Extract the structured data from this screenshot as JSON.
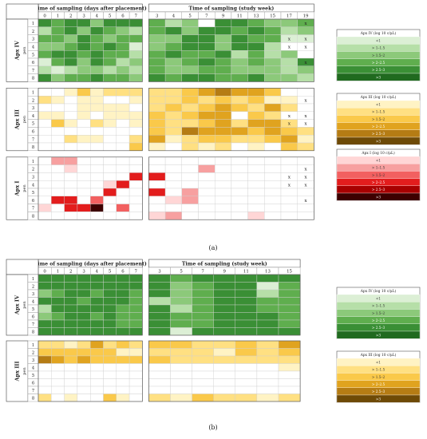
{
  "scale_colors": {
    "green": [
      "#dcefd5",
      "#b6dfa8",
      "#8cc97a",
      "#5fae4e",
      "#3a8f35",
      "#206a1f"
    ],
    "gold": [
      "#fff3c4",
      "#ffe082",
      "#fac94a",
      "#e0a31f",
      "#b57c14",
      "#6e4a06"
    ],
    "red": [
      "#ffd6d6",
      "#f7a0a0",
      "#f26060",
      "#e31d1d",
      "#a80000",
      "#3d0000"
    ],
    "pale_pink": "#fbe3ee",
    "empty": "#ffffff"
  },
  "panels": [
    {
      "caption": "(a)",
      "days_header": "Time of sampling (days after placement)",
      "weeks_header": "Time of sampling (study week)",
      "day_ticks": [
        "0",
        "1",
        "2",
        "3",
        "4",
        "5",
        "6",
        "7"
      ],
      "week_ticks": [
        "3",
        "4",
        "5",
        "7",
        "9",
        "11",
        "13",
        "15",
        "17",
        "19"
      ],
      "pen_label": "pen",
      "pens": [
        "1",
        "2",
        "3",
        "4",
        "5",
        "6",
        "7",
        "8"
      ],
      "groups": [
        {
          "gene": "Apx IV",
          "scale": "green",
          "days": [
            [
              5,
              4,
              5,
              5,
              3,
              5,
              5,
              5
            ],
            [
              2,
              4,
              5,
              3,
              5,
              4,
              3,
              2
            ],
            [
              4,
              4,
              3,
              5,
              4,
              3,
              4,
              4
            ],
            [
              3,
              3,
              4,
              5,
              4,
              5,
              4,
              1
            ],
            [
              4,
              5,
              5,
              4,
              5,
              4,
              4,
              2
            ],
            [
              1,
              4,
              5,
              3,
              5,
              4,
              2,
              3
            ],
            [
              2,
              1,
              2,
              3,
              3,
              2,
              3,
              2
            ],
            [
              5,
              3,
              4,
              4,
              5,
              4,
              4,
              3
            ]
          ],
          "weeks": [
            [
              4,
              2,
              3,
              0,
              5,
              5,
              4,
              3,
              3,
              4
            ],
            [
              4,
              5,
              3,
              5,
              5,
              4,
              5,
              4,
              2,
              3
            ],
            [
              3,
              3,
              5,
              5,
              3,
              5,
              4,
              4,
              1,
              1
            ],
            [
              3,
              4,
              5,
              5,
              3,
              5,
              5,
              2,
              0,
              0
            ],
            [
              4,
              5,
              4,
              4,
              5,
              2,
              4,
              2,
              3,
              0
            ],
            [
              4,
              3,
              4,
              5,
              4,
              3,
              4,
              3,
              2,
              5
            ],
            [
              4,
              3,
              3,
              4,
              4,
              3,
              3,
              3,
              2,
              3
            ],
            [
              5,
              4,
              5,
              5,
              4,
              4,
              5,
              3,
              3,
              2
            ]
          ],
          "x_marks": [
            [
              0,
              9
            ],
            [
              2,
              8
            ],
            [
              2,
              9
            ],
            [
              3,
              8
            ],
            [
              3,
              9
            ],
            [
              5,
              9
            ]
          ]
        },
        {
          "gene": "Apx III",
          "scale": "gold",
          "days": [
            [
              0,
              0,
              1,
              3,
              1,
              2,
              2,
              2
            ],
            [
              2,
              1,
              0,
              1,
              1,
              0,
              0,
              1
            ],
            [
              0,
              0,
              0,
              1,
              1,
              1,
              1,
              0
            ],
            [
              1,
              1,
              0,
              1,
              0,
              1,
              1,
              1
            ],
            [
              0,
              3,
              1,
              0,
              2,
              1,
              0,
              1
            ],
            [
              0,
              0,
              0,
              0,
              0,
              0,
              0,
              0
            ],
            [
              0,
              0,
              2,
              1,
              1,
              0,
              0,
              2
            ],
            [
              0,
              0,
              0,
              0,
              0,
              0,
              0,
              3
            ]
          ],
          "weeks": [
            [
              2,
              2,
              3,
              4,
              5,
              4,
              4,
              3,
              0,
              0
            ],
            [
              2,
              2,
              3,
              2,
              3,
              2,
              3,
              1,
              1,
              0
            ],
            [
              2,
              3,
              2,
              3,
              4,
              3,
              2,
              4,
              2,
              0
            ],
            [
              3,
              2,
              3,
              4,
              4,
              0,
              3,
              2,
              0,
              0
            ],
            [
              3,
              2,
              2,
              3,
              4,
              2,
              4,
              4,
              2,
              0
            ],
            [
              3,
              2,
              5,
              4,
              4,
              4,
              3,
              4,
              3,
              2
            ],
            [
              4,
              1,
              2,
              3,
              3,
              2,
              2,
              3,
              4,
              1
            ],
            [
              1,
              0,
              2,
              1,
              2,
              0,
              1,
              0,
              3,
              2
            ]
          ],
          "x_marks": [
            [
              1,
              9
            ],
            [
              3,
              8
            ],
            [
              3,
              9
            ],
            [
              4,
              8
            ],
            [
              4,
              9
            ]
          ]
        },
        {
          "gene": "Apx I",
          "scale": "red",
          "days": [
            [
              0,
              2,
              2,
              0,
              0,
              0,
              0,
              0
            ],
            [
              0,
              0,
              1,
              0,
              0,
              0,
              0,
              0
            ],
            [
              0,
              0,
              0,
              0,
              0,
              0,
              0,
              4
            ],
            [
              0,
              0,
              0,
              0,
              0,
              1,
              4,
              0
            ],
            [
              0,
              0,
              0,
              0,
              0,
              4,
              0,
              0
            ],
            [
              0,
              4,
              4,
              0,
              3,
              0,
              0,
              0
            ],
            [
              1,
              0,
              4,
              4,
              6,
              0,
              3,
              0
            ],
            [
              0,
              0,
              0,
              0,
              0,
              0,
              0,
              0
            ]
          ],
          "weeks": [
            [
              0,
              0,
              0,
              0,
              0,
              0,
              0,
              0,
              0,
              0
            ],
            [
              0,
              0,
              0,
              2,
              0,
              0,
              0,
              0,
              0,
              0
            ],
            [
              4,
              0,
              0,
              0,
              0,
              0,
              0,
              0,
              0,
              0
            ],
            [
              0,
              0,
              0,
              0,
              0,
              0,
              0,
              0,
              0,
              0
            ],
            [
              4,
              0,
              2,
              0,
              0,
              0,
              0,
              0,
              0,
              0
            ],
            [
              0,
              1,
              2,
              0,
              0,
              0,
              0,
              0,
              0,
              0
            ],
            [
              0,
              0,
              0,
              0,
              0,
              0,
              0,
              0,
              0,
              0
            ],
            [
              1,
              2,
              0,
              0,
              0,
              0,
              1,
              0,
              0,
              0
            ]
          ],
          "x_marks": [
            [
              1,
              9
            ],
            [
              2,
              8
            ],
            [
              2,
              9
            ],
            [
              3,
              8
            ],
            [
              3,
              9
            ],
            [
              5,
              9
            ]
          ]
        }
      ]
    },
    {
      "caption": "(b)",
      "days_header": "Time of sampling (days after placement)",
      "weeks_header": "Time of sampling (study week)",
      "day_ticks": [
        "0",
        "1",
        "2",
        "3",
        "4",
        "5",
        "6",
        "7"
      ],
      "week_ticks": [
        "3",
        "5",
        "7",
        "9",
        "11",
        "13",
        "15"
      ],
      "pen_label": "pen",
      "pens": [
        "1",
        "2",
        "3",
        "4",
        "5",
        "6",
        "7",
        "8"
      ],
      "groups": [
        {
          "gene": "Apx IV",
          "scale": "green",
          "days": [
            [
              5,
              5,
              5,
              5,
              5,
              5,
              5,
              5
            ],
            [
              5,
              5,
              5,
              5,
              5,
              5,
              5,
              5
            ],
            [
              3,
              4,
              5,
              5,
              4,
              5,
              5,
              4
            ],
            [
              5,
              5,
              5,
              4,
              5,
              5,
              5,
              4
            ],
            [
              2,
              5,
              5,
              5,
              5,
              5,
              4,
              4
            ],
            [
              3,
              4,
              5,
              5,
              4,
              5,
              4,
              4
            ],
            [
              5,
              5,
              5,
              5,
              5,
              5,
              4,
              4
            ],
            [
              5,
              5,
              5,
              5,
              5,
              5,
              5,
              5
            ]
          ],
          "weeks": [
            [
              5,
              4,
              5,
              5,
              5,
              5,
              5
            ],
            [
              5,
              3,
              4,
              5,
              5,
              1,
              4
            ],
            [
              5,
              3,
              4,
              5,
              5,
              2,
              4
            ],
            [
              2,
              3,
              4,
              5,
              5,
              4,
              4
            ],
            [
              5,
              2,
              4,
              5,
              5,
              4,
              4
            ],
            [
              5,
              4,
              4,
              5,
              5,
              5,
              4
            ],
            [
              5,
              4,
              4,
              5,
              5,
              5,
              4
            ],
            [
              5,
              1,
              5,
              5,
              5,
              5,
              5
            ]
          ],
          "x_marks": []
        },
        {
          "gene": "Apx III",
          "scale": "gold",
          "days": [
            [
              2,
              2,
              1,
              2,
              4,
              2,
              3,
              2
            ],
            [
              3,
              3,
              3,
              3,
              3,
              3,
              1,
              1
            ],
            [
              5,
              4,
              3,
              4,
              3,
              3,
              3,
              3
            ],
            [
              0,
              0,
              0,
              0,
              0,
              0,
              0,
              0
            ],
            [
              0,
              0,
              0,
              0,
              0,
              0,
              0,
              0
            ],
            [
              0,
              0,
              0,
              0,
              0,
              0,
              0,
              0
            ],
            [
              0,
              0,
              0,
              0,
              0,
              0,
              0,
              0
            ],
            [
              2,
              0,
              1,
              0,
              0,
              3,
              1,
              0
            ]
          ],
          "weeks": [
            [
              3,
              3,
              2,
              2,
              3,
              2,
              4
            ],
            [
              2,
              2,
              2,
              1,
              3,
              2,
              3
            ],
            [
              3,
              2,
              2,
              2,
              2,
              2,
              2
            ],
            [
              0,
              0,
              0,
              0,
              0,
              0,
              1
            ],
            [
              0,
              0,
              0,
              0,
              0,
              0,
              0
            ],
            [
              0,
              0,
              0,
              0,
              0,
              0,
              0
            ],
            [
              0,
              0,
              0,
              0,
              0,
              0,
              0
            ],
            [
              2,
              1,
              3,
              2,
              2,
              1,
              2
            ]
          ],
          "x_marks": []
        }
      ]
    }
  ],
  "legends": [
    {
      "title": "Apx IV (log 10 c/μL)",
      "scale": "green",
      "labels": [
        "<1",
        "> 1–1.5",
        "> 1.5–2",
        "> 2–2.5",
        "> 2.5–3",
        ">3"
      ]
    },
    {
      "title": "Apx III (log 10 c/μL)",
      "scale": "gold",
      "labels": [
        "<1",
        "> 1–1.5",
        "> 1.5–2",
        "> 2–2.5",
        "> 2.5–3",
        ">3"
      ]
    },
    {
      "title": "Apx I (log 10 c/μL)",
      "scale": "red",
      "labels": [
        "<1",
        "> 1–1.5",
        "> 1.5–2",
        "> 2–2.5",
        "> 2.5–3",
        ">3"
      ]
    },
    {
      "title": "Apx IV (log 10 c/μL)",
      "scale": "green",
      "labels": [
        "<1",
        "> 1–1.5",
        "> 1.5–2",
        "> 2–2.5",
        "> 2.5–3",
        ">3"
      ]
    },
    {
      "title": "Apx III (log 10 c/μL)",
      "scale": "gold",
      "labels": [
        "<1",
        "> 1–1.5",
        "> 1.5–2",
        "> 2–2.5",
        "> 2.5–3",
        ">3"
      ]
    }
  ],
  "x_mark_symbol": "x",
  "chart_data": {
    "type": "heatmap",
    "cell_value_legend": [
      "none",
      "<1",
      "> 1–1.5",
      "> 1.5–2",
      "> 2–2.5",
      "> 2.5–3",
      ">3"
    ],
    "note": "cell values are class indices 0-6 into cell_value_legend; see panels[].groups[].days / weeks"
  }
}
